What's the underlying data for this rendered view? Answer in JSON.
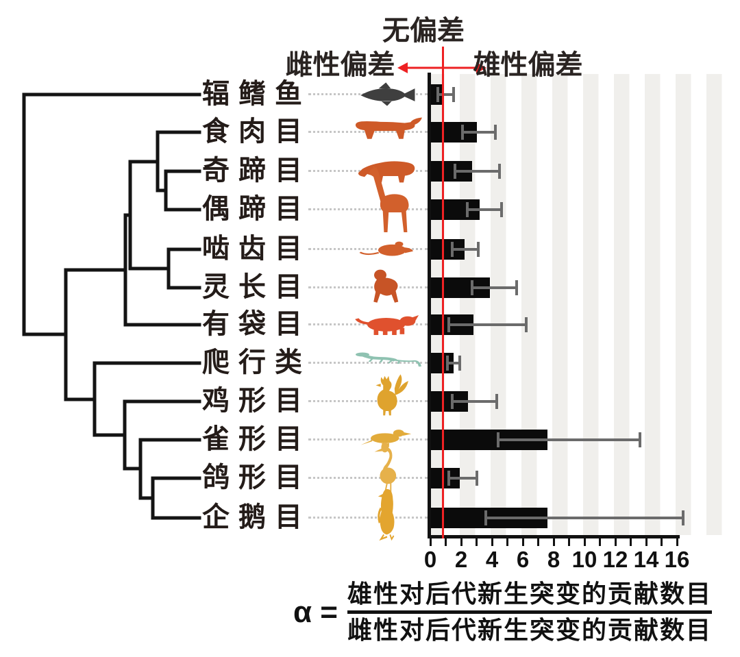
{
  "figure": {
    "annotations": {
      "no_bias": "无偏差",
      "female_bias": "雌性偏差",
      "male_bias": "雄性偏差"
    },
    "formula": {
      "lhs": "α =",
      "numerator": "雄性对后代新生突变的贡献数目",
      "denominator": "雌性对后代新生突变的贡献数目"
    },
    "reference_line_color": "#ee2123",
    "bar_color": "#0b0b0b",
    "error_color": "#6b6b6b"
  },
  "chart_data": {
    "type": "bar",
    "orientation": "horizontal",
    "title": "",
    "xlabel": "α",
    "ylabel": "",
    "x_range": [
      0,
      16
    ],
    "x_minor_tick_step": 1,
    "x_tick_labels": [
      "0",
      "2",
      "4",
      "6",
      "8",
      "10",
      "12",
      "14",
      "16"
    ],
    "reference_line_x": 1,
    "background_stripes": "gray band on every even-to-odd unit interval [0-1],[2-3],...",
    "legend": "none",
    "rows": [
      {
        "label": "辐鳍鱼",
        "icon": "fish",
        "color": "#3f3f3f",
        "alpha": 0.9,
        "ci": [
          0.5,
          1.5
        ]
      },
      {
        "label": "食肉目",
        "icon": "felid",
        "color": "#ce5a28",
        "alpha": 3.0,
        "ci": [
          2.1,
          4.2
        ]
      },
      {
        "label": "奇蹄目",
        "icon": "tapir",
        "color": "#ce5a28",
        "alpha": 2.7,
        "ci": [
          1.6,
          4.5
        ]
      },
      {
        "label": "偶蹄目",
        "icon": "giraffe",
        "color": "#d2602c",
        "alpha": 3.2,
        "ci": [
          2.4,
          4.6
        ]
      },
      {
        "label": "啮齿目",
        "icon": "rodent",
        "color": "#d2602c",
        "alpha": 2.2,
        "ci": [
          1.4,
          3.1
        ]
      },
      {
        "label": "灵长目",
        "icon": "primate",
        "color": "#c75426",
        "alpha": 3.85,
        "ci": [
          2.7,
          5.6
        ]
      },
      {
        "label": "有袋目",
        "icon": "marsupial",
        "color": "#e0512e",
        "alpha": 2.8,
        "ci": [
          1.2,
          6.2
        ]
      },
      {
        "label": "爬行类",
        "icon": "lizard",
        "color": "#8fc2b1",
        "alpha": 1.5,
        "ci": [
          1.1,
          1.9
        ]
      },
      {
        "label": "鸡形目",
        "icon": "rooster",
        "color": "#dfa32e",
        "alpha": 2.45,
        "ci": [
          1.4,
          4.3
        ]
      },
      {
        "label": "雀形目",
        "icon": "songbird",
        "color": "#e2ab3a",
        "alpha": 7.6,
        "ci": [
          4.4,
          13.6
        ]
      },
      {
        "label": "鸽形目",
        "icon": "flamingo",
        "color": "#e6b14b",
        "alpha": 1.9,
        "ci": [
          1.2,
          3.0
        ]
      },
      {
        "label": "企鹅目",
        "icon": "penguin",
        "color": "#e3a52f",
        "alpha": 7.6,
        "ci": [
          3.6,
          16.4
        ]
      }
    ],
    "phylogeny_newick": "(辐鳍鱼,((((食肉目,(奇蹄目,偶蹄目)),(啮齿目,灵长目)),有袋目),(爬行类,(鸡形目,(雀形目,(鸽形目,企鹅目))))));"
  }
}
